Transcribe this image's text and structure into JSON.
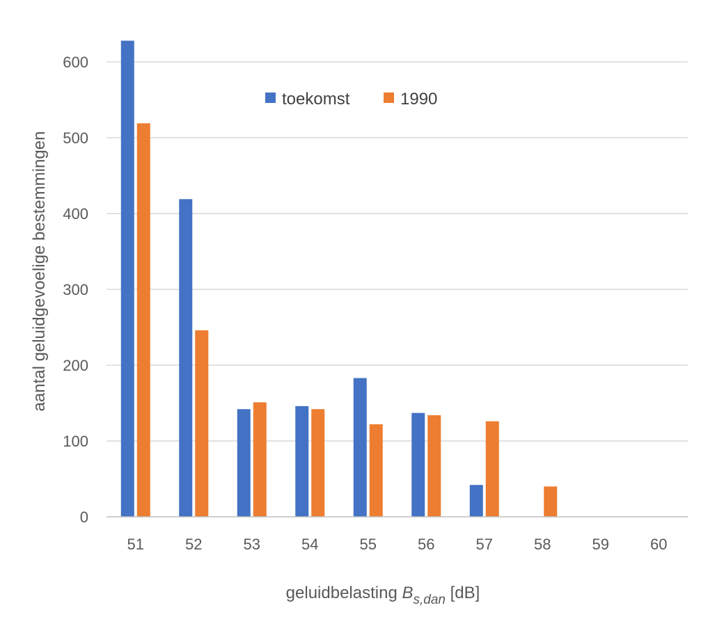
{
  "chart_data": {
    "type": "bar",
    "title": "",
    "categories": [
      "51",
      "52",
      "53",
      "54",
      "55",
      "56",
      "57",
      "58",
      "59",
      "60"
    ],
    "series": [
      {
        "name": "toekomst",
        "color": "#4472C4",
        "values": [
          628,
          419,
          142,
          146,
          183,
          137,
          42,
          0,
          0,
          0
        ]
      },
      {
        "name": "1990",
        "color": "#ED7D31",
        "values": [
          519,
          246,
          151,
          142,
          122,
          134,
          126,
          40,
          0,
          0
        ]
      }
    ],
    "ylim": [
      0,
      600
    ],
    "yticks": [
      0,
      100,
      200,
      300,
      400,
      500,
      600
    ],
    "grid": true,
    "legend_position": "top-center",
    "xlabel": {
      "prefix": "geluidbelasting ",
      "symbol": "B",
      "subscript": "s,dan",
      "suffix": " [dB]"
    },
    "ylabel": "aantal geluidgevoelige bestemmingen"
  }
}
